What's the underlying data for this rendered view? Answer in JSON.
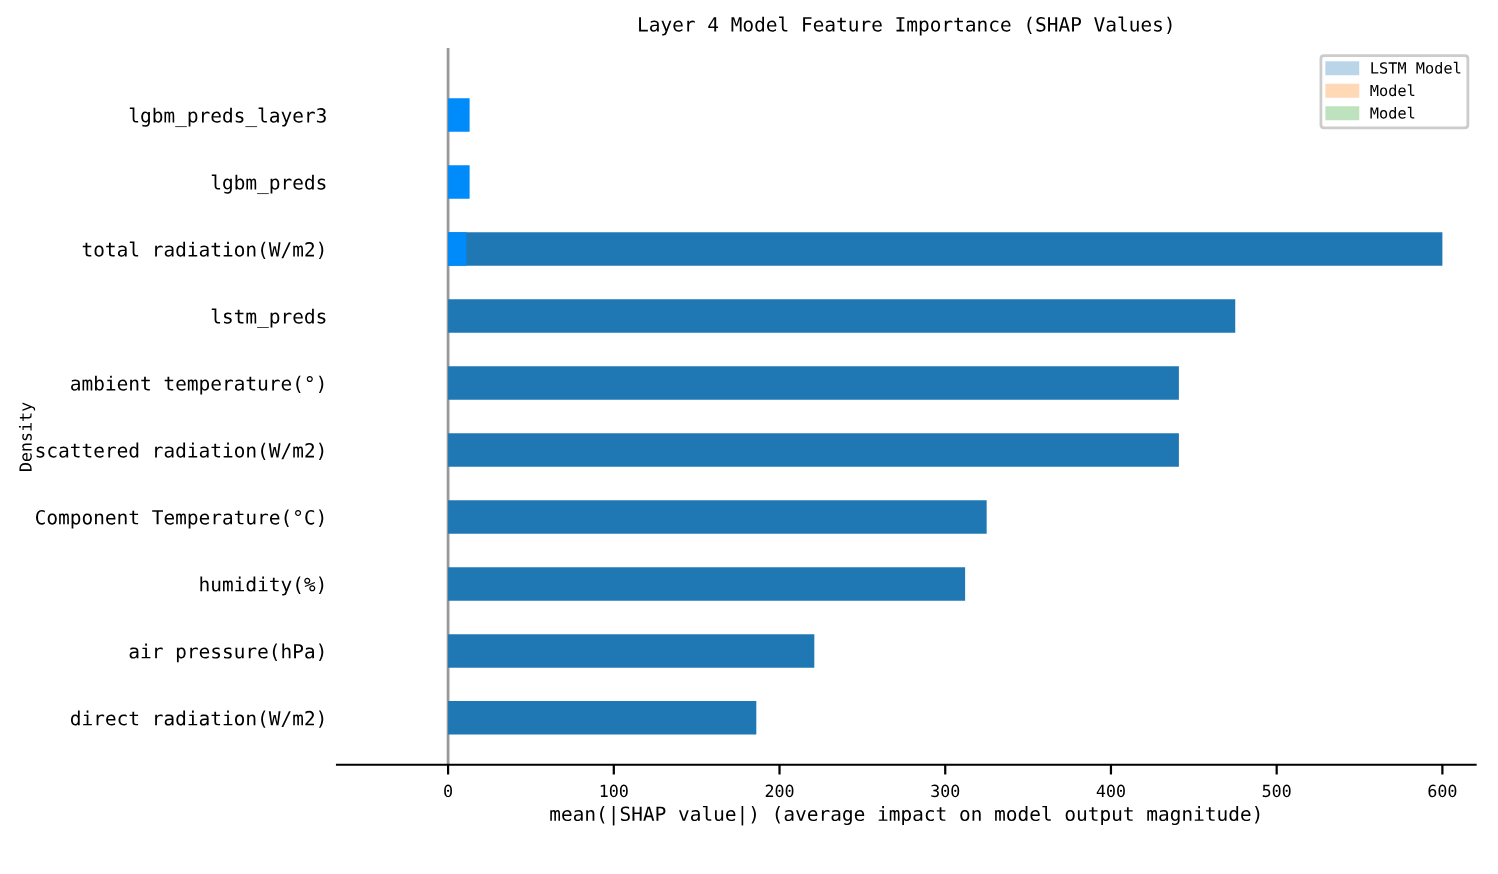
{
  "chart_data": {
    "type": "bar",
    "orientation": "horizontal",
    "title": "Layer 4 Model Feature Importance (SHAP Values)",
    "xlabel": "mean(|SHAP value|) (average impact on model output magnitude)",
    "ylabel": "Density",
    "categories": [
      "lgbm_preds_layer3",
      "lgbm_preds",
      "total radiation(W/m2)",
      "lstm_preds",
      "ambient temperature(°)",
      "scattered radiation(W/m2)",
      "Component Temperature(°C)",
      "humidity(%)",
      "air pressure(hPa)",
      "direct radiation(W/m2)"
    ],
    "series": [
      {
        "color": "#1f77b4",
        "values": [
          null,
          null,
          600,
          475,
          441,
          441,
          325,
          312,
          221,
          186
        ]
      },
      {
        "color": "#008bfb",
        "values": [
          13,
          13,
          11,
          null,
          null,
          null,
          null,
          null,
          null,
          null
        ]
      },
      {
        "name": "LSTM Model",
        "color": "#1f77b4",
        "values": [
          null,
          null,
          null,
          null,
          null,
          null,
          null,
          null,
          null,
          null
        ]
      },
      {
        "name": "Model",
        "color": "#ff7f0e",
        "values": [
          null,
          null,
          null,
          null,
          null,
          null,
          null,
          null,
          null,
          null
        ]
      },
      {
        "name": "Model",
        "color": "#2ca02c",
        "values": [
          null,
          null,
          null,
          null,
          null,
          null,
          null,
          null,
          null,
          null
        ]
      }
    ],
    "xlim": [
      -67,
      620
    ],
    "xticks": [
      0,
      100,
      200,
      300,
      400,
      500,
      600
    ],
    "ref_lines": [
      {
        "axis": "x",
        "value": 0,
        "color": "#999999"
      }
    ],
    "grid": false,
    "legend": "top right"
  }
}
